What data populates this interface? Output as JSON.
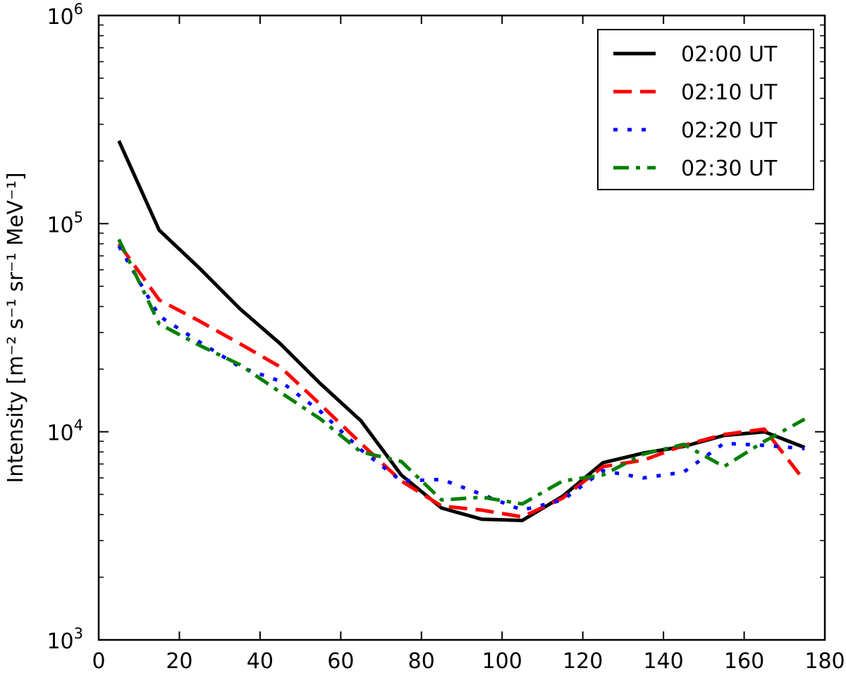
{
  "chart_data": {
    "type": "line",
    "title": "",
    "xlabel": "",
    "ylabel": "Intensity [m⁻² s⁻¹ sr⁻¹ MeV⁻¹]",
    "xlim": [
      0,
      180
    ],
    "ylim": [
      1000,
      1000000
    ],
    "yscale": "log",
    "grid": false,
    "legend_position": "top-right",
    "x_ticks": [
      0,
      20,
      40,
      60,
      80,
      100,
      120,
      140,
      160,
      180
    ],
    "x_tick_labels": [
      "0",
      "20",
      "40",
      "60",
      "80",
      "100",
      "120",
      "140",
      "160",
      "180"
    ],
    "y_ticks": [
      1000,
      10000,
      100000,
      1000000
    ],
    "y_tick_labels": [
      {
        "base": "10",
        "exp": "3"
      },
      {
        "base": "10",
        "exp": "4"
      },
      {
        "base": "10",
        "exp": "5"
      },
      {
        "base": "10",
        "exp": "6"
      }
    ],
    "x": [
      5,
      15,
      25,
      35,
      45,
      55,
      65,
      75,
      85,
      95,
      105,
      115,
      125,
      135,
      145,
      155,
      165,
      175
    ],
    "series": [
      {
        "name": "02:00 UT",
        "color": "#000000",
        "style": "solid",
        "values": [
          250000,
          93000,
          61000,
          39000,
          26500,
          17000,
          11300,
          6200,
          4300,
          3800,
          3750,
          4900,
          7100,
          7900,
          8500,
          9600,
          10000,
          8400
        ]
      },
      {
        "name": "02:10 UT",
        "color": "#ff0000",
        "style": "dashed",
        "values": [
          80000,
          43000,
          34000,
          26500,
          20500,
          13500,
          8800,
          5800,
          4400,
          4200,
          3900,
          4800,
          6800,
          7300,
          8600,
          9700,
          10300,
          5800
        ]
      },
      {
        "name": "02:20 UT",
        "color": "#0000ff",
        "style": "dotted",
        "values": [
          78000,
          36000,
          27000,
          20500,
          17500,
          12500,
          8200,
          5800,
          5900,
          5000,
          4200,
          4700,
          6500,
          6000,
          6400,
          8800,
          8600,
          8300
        ]
      },
      {
        "name": "02:30 UT",
        "color": "#008000",
        "style": "dashdot",
        "values": [
          84000,
          33000,
          26000,
          21000,
          15500,
          11500,
          8000,
          7200,
          4700,
          4850,
          4500,
          5800,
          6200,
          7800,
          8700,
          6800,
          9000,
          11500
        ]
      }
    ]
  }
}
